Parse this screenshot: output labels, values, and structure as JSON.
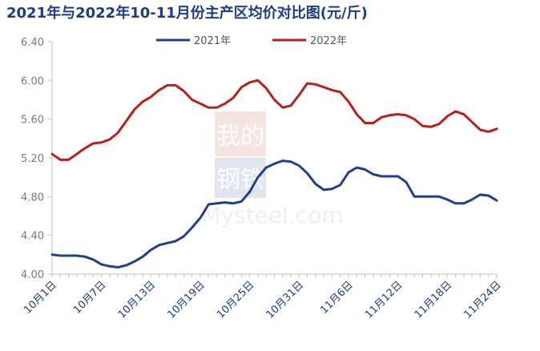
{
  "chart_data": {
    "type": "line",
    "title": "2021年与2022年10-11月份主产区均价对比图(元/斤)",
    "watermark": [
      "我的",
      "钢铁",
      "Mysteel.com"
    ],
    "categories": [
      "10月1日",
      "10月2日",
      "10月3日",
      "10月4日",
      "10月5日",
      "10月6日",
      "10月7日",
      "10月8日",
      "10月9日",
      "10月10日",
      "10月11日",
      "10月12日",
      "10月13日",
      "10月14日",
      "10月15日",
      "10月16日",
      "10月17日",
      "10月18日",
      "10月19日",
      "10月20日",
      "10月21日",
      "10月22日",
      "10月23日",
      "10月24日",
      "10月25日",
      "10月26日",
      "10月27日",
      "10月28日",
      "10月29日",
      "10月30日",
      "10月31日",
      "11月1日",
      "11月2日",
      "11月3日",
      "11月4日",
      "11月5日",
      "11月6日",
      "11月7日",
      "11月8日",
      "11月9日",
      "11月10日",
      "11月11日",
      "11月12日",
      "11月13日",
      "11月14日",
      "11月15日",
      "11月16日",
      "11月17日",
      "11月18日",
      "11月19日",
      "11月20日",
      "11月21日",
      "11月22日",
      "11月23日",
      "11月24日"
    ],
    "x_tick_labels": [
      "10月1日",
      "10月7日",
      "10月13日",
      "10月19日",
      "10月25日",
      "10月31日",
      "11月6日",
      "11月12日",
      "11月18日",
      "11月24日"
    ],
    "y_ticks": [
      "4.00",
      "4.40",
      "4.80",
      "5.20",
      "5.60",
      "6.00",
      "6.40"
    ],
    "ylim": [
      4.0,
      6.4
    ],
    "legend_position": "top",
    "series": [
      {
        "name": "2021年",
        "color": "#1f3f8f",
        "values": [
          4.2,
          4.19,
          4.19,
          4.19,
          4.18,
          4.15,
          4.1,
          4.08,
          4.07,
          4.09,
          4.13,
          4.18,
          4.25,
          4.3,
          4.32,
          4.34,
          4.39,
          4.48,
          4.58,
          4.72,
          4.73,
          4.74,
          4.73,
          4.75,
          4.85,
          5.0,
          5.1,
          5.14,
          5.17,
          5.16,
          5.12,
          5.04,
          4.93,
          4.87,
          4.88,
          4.92,
          5.05,
          5.1,
          5.08,
          5.03,
          5.01,
          5.01,
          5.01,
          4.95,
          4.8,
          4.8,
          4.8,
          4.8,
          4.77,
          4.73,
          4.73,
          4.77,
          4.82,
          4.81,
          4.76
        ]
      },
      {
        "name": "2022年",
        "color": "#b8201c",
        "values": [
          5.24,
          5.18,
          5.18,
          5.24,
          5.3,
          5.35,
          5.36,
          5.39,
          5.46,
          5.58,
          5.7,
          5.78,
          5.83,
          5.9,
          5.95,
          5.95,
          5.89,
          5.8,
          5.76,
          5.72,
          5.72,
          5.76,
          5.82,
          5.93,
          5.98,
          6.0,
          5.92,
          5.8,
          5.72,
          5.74,
          5.85,
          5.97,
          5.96,
          5.93,
          5.9,
          5.88,
          5.78,
          5.65,
          5.56,
          5.56,
          5.62,
          5.64,
          5.65,
          5.64,
          5.6,
          5.53,
          5.52,
          5.55,
          5.63,
          5.68,
          5.65,
          5.57,
          5.49,
          5.47,
          5.5
        ]
      }
    ]
  }
}
